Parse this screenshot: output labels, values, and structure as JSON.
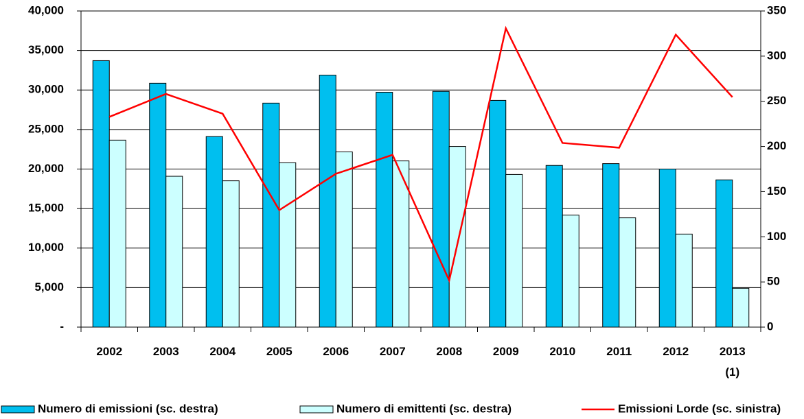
{
  "chart_data": {
    "type": "bar_line",
    "categories": [
      "2002",
      "2003",
      "2004",
      "2005",
      "2006",
      "2007",
      "2008",
      "2009",
      "2010",
      "2011",
      "2012",
      "2013\n(1)"
    ],
    "series": [
      {
        "name": "Numero di emissioni (sc. destra)",
        "color": "#00BFEF",
        "type": "bar",
        "axis": "y2",
        "values": [
          295,
          270,
          211,
          248,
          279,
          260,
          261,
          251,
          179,
          181,
          175,
          163
        ]
      },
      {
        "name": "Numero di emittenti (sc. destra)",
        "color": "#CCFFFF",
        "type": "bar",
        "axis": "y2",
        "values": [
          207,
          167,
          162,
          182,
          194,
          184,
          200,
          169,
          124,
          121,
          103,
          43
        ]
      },
      {
        "name": "Emissioni Lorde (sc. sinistra)",
        "color": "#FF0000",
        "type": "line",
        "values": [
          26600,
          29500,
          27000,
          14800,
          19400,
          21800,
          5900,
          37800,
          23300,
          22700,
          37000,
          29100
        ]
      }
    ],
    "ylim": [
      0,
      40000
    ],
    "yticks": [
      {
        "value": 0,
        "label": "-"
      },
      {
        "value": 5000,
        "label": "5,000"
      },
      {
        "value": 10000,
        "label": "10,000"
      },
      {
        "value": 15000,
        "label": "15,000"
      },
      {
        "value": 20000,
        "label": "20,000"
      },
      {
        "value": 25000,
        "label": "25,000"
      },
      {
        "value": 30000,
        "label": "30,000"
      },
      {
        "value": 35000,
        "label": "35,000"
      },
      {
        "value": 40000,
        "label": "40,000"
      }
    ],
    "y2lim": [
      0,
      350
    ],
    "y2ticks": [
      0,
      50,
      100,
      150,
      200,
      250,
      300,
      350
    ],
    "grid": true,
    "legend": "bottom"
  }
}
